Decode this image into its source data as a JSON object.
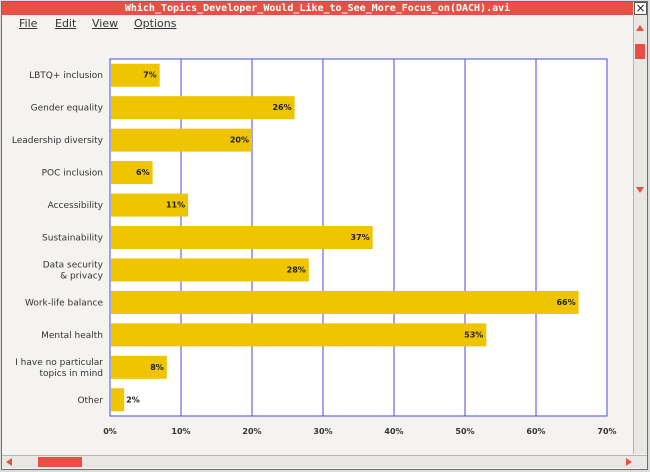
{
  "window": {
    "title": "Which_Topics_Developer_Would_Like_to_See_More_Focus_on(DACH).avi",
    "close_glyph": "×"
  },
  "menu": {
    "items": [
      "File",
      "Edit",
      "View",
      "Options"
    ]
  },
  "colors": {
    "bar": "#efc400",
    "titlebar": "#ea4f45",
    "grid": "#4a4adc"
  },
  "chart_data": {
    "type": "bar",
    "orientation": "horizontal",
    "categories": [
      [
        "LBTQ+ inclusion"
      ],
      [
        "Gender equality"
      ],
      [
        "Leadership diversity"
      ],
      [
        "POC inclusion"
      ],
      [
        "Accessibility"
      ],
      [
        "Sustainability"
      ],
      [
        "Data security",
        "& privacy"
      ],
      [
        "Work-life balance"
      ],
      [
        "Mental health"
      ],
      [
        "I have no particular",
        "topics in mind"
      ],
      [
        "Other"
      ]
    ],
    "values": [
      7,
      26,
      20,
      6,
      11,
      37,
      28,
      66,
      53,
      8,
      2
    ],
    "value_labels": [
      "7%",
      "26%",
      "20%",
      "6%",
      "11%",
      "37%",
      "28%",
      "66%",
      "53%",
      "8%",
      "2%"
    ],
    "xlim": [
      0,
      70
    ],
    "xticks": [
      "0%",
      "10%",
      "20%",
      "30%",
      "40%",
      "50%",
      "60%",
      "70%"
    ],
    "grid": true
  }
}
